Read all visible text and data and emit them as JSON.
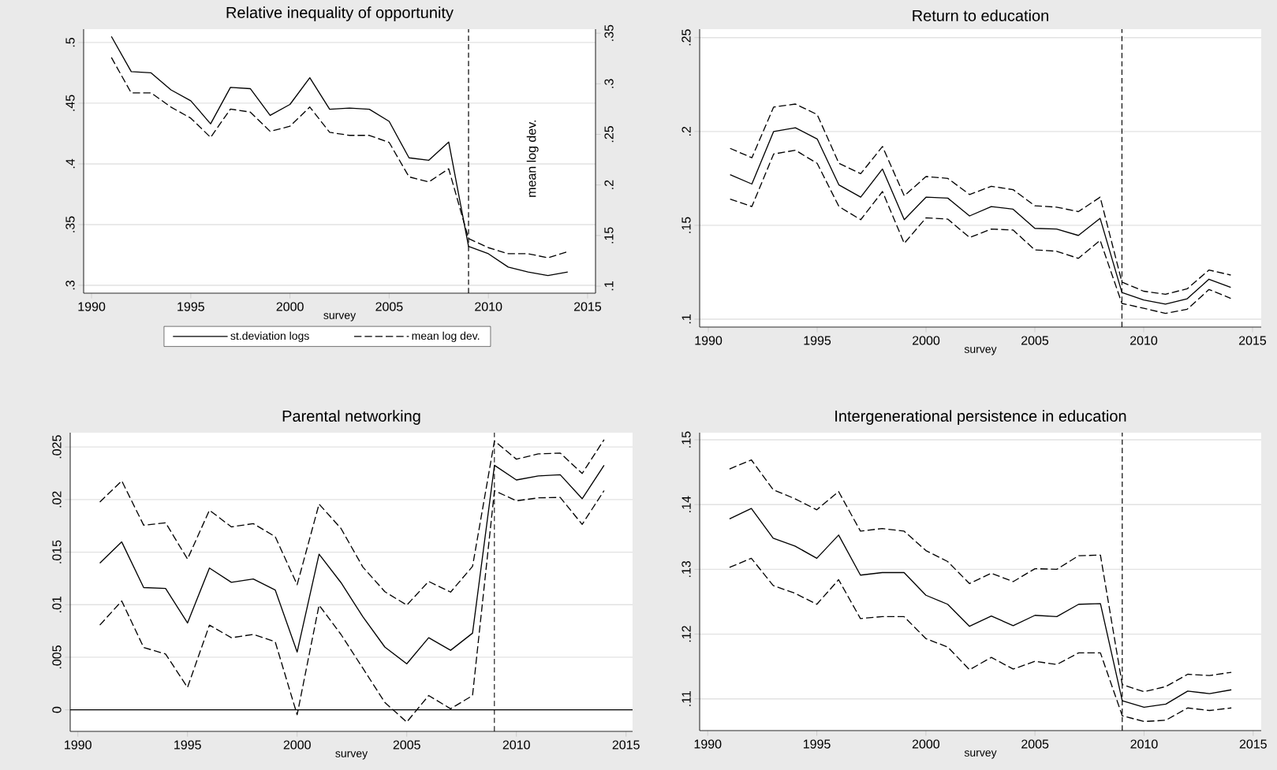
{
  "chart_data": [
    {
      "type": "line",
      "title": "Relative inequality of opportunity",
      "xlabel": "survey",
      "y2label": "mean log dev.",
      "x": [
        1991,
        1992,
        1993,
        1994,
        1995,
        1996,
        1997,
        1998,
        1999,
        2000,
        2001,
        2002,
        2003,
        2004,
        2005,
        2006,
        2007,
        2008,
        2009,
        2010,
        2011,
        2012,
        2013,
        2014
      ],
      "series": [
        {
          "name": "st.deviation logs",
          "color": "#000000",
          "line_style": "solid",
          "values": [
            0.505,
            0.476,
            0.475,
            0.461,
            0.452,
            0.433,
            0.463,
            0.462,
            0.44,
            0.449,
            0.471,
            0.445,
            0.446,
            0.445,
            0.435,
            0.405,
            0.403,
            0.418,
            0.332,
            0.326,
            0.315,
            0.311,
            0.308,
            0.311
          ]
        },
        {
          "name": "mean log dev.",
          "color": "#000000",
          "line_style": "dashed",
          "axis": "y2",
          "values": [
            0.326,
            0.291,
            0.291,
            0.277,
            0.266,
            0.247,
            0.275,
            0.272,
            0.253,
            0.258,
            0.277,
            0.252,
            0.249,
            0.249,
            0.242,
            0.208,
            0.203,
            0.216,
            0.147,
            0.138,
            0.132,
            0.132,
            0.128,
            0.134
          ]
        }
      ],
      "xlim": [
        1989.6,
        2015.4
      ],
      "xticks": [
        1990,
        1995,
        2000,
        2005,
        2010,
        2015
      ],
      "ylim": [
        0.2935,
        0.511
      ],
      "yticks": [
        {
          "value": 0.3,
          "label": ".3"
        },
        {
          "value": 0.35,
          "label": ".35"
        },
        {
          "value": 0.4,
          "label": ".4"
        },
        {
          "value": 0.45,
          "label": ".45"
        },
        {
          "value": 0.5,
          "label": ".5"
        }
      ],
      "y2lim": [
        0.093,
        0.354
      ],
      "y2ticks": [
        {
          "value": 0.1,
          "label": ".1"
        },
        {
          "value": 0.15,
          "label": ".15"
        },
        {
          "value": 0.2,
          "label": ".2"
        },
        {
          "value": 0.25,
          "label": ".25"
        },
        {
          "value": 0.3,
          "label": ".3"
        },
        {
          "value": 0.35,
          "label": ".35"
        }
      ],
      "grid": "y",
      "legend": "bottom",
      "ref_lines": [
        {
          "axis": "x",
          "value": 2009,
          "line_style": "dashed"
        }
      ]
    },
    {
      "type": "line",
      "title": "Return to education",
      "xlabel": "survey",
      "x": [
        1991,
        1992,
        1993,
        1994,
        1995,
        1996,
        1997,
        1998,
        1999,
        2000,
        2001,
        2002,
        2003,
        2004,
        2005,
        2006,
        2007,
        2008,
        2009,
        2010,
        2011,
        2012,
        2013,
        2014
      ],
      "series": [
        {
          "color": "#000000",
          "line_style": "solid",
          "values": [
            0.177,
            0.172,
            0.2,
            0.202,
            0.196,
            0.1715,
            0.165,
            0.18,
            0.153,
            0.165,
            0.1645,
            0.155,
            0.16,
            0.1586,
            0.1484,
            0.148,
            0.1446,
            0.1537,
            0.1142,
            0.1102,
            0.108,
            0.1109,
            0.1213,
            0.1169
          ]
        },
        {
          "color": "#000000",
          "line_style": "dashed",
          "values": [
            0.191,
            0.186,
            0.213,
            0.2146,
            0.209,
            0.183,
            0.1775,
            0.192,
            0.1657,
            0.176,
            0.175,
            0.1664,
            0.1708,
            0.169,
            0.1604,
            0.1597,
            0.1573,
            0.165,
            0.1198,
            0.1149,
            0.1133,
            0.1162,
            0.1262,
            0.1235
          ]
        },
        {
          "color": "#000000",
          "line_style": "dashed",
          "values": [
            0.164,
            0.16,
            0.188,
            0.19,
            0.183,
            0.16,
            0.153,
            0.168,
            0.1404,
            0.154,
            0.1533,
            0.1435,
            0.148,
            0.1475,
            0.1369,
            0.1362,
            0.1324,
            0.142,
            0.1084,
            0.1058,
            0.1031,
            0.1053,
            0.1158,
            0.1111
          ]
        }
      ],
      "xlim": [
        1989.6,
        2015.4
      ],
      "xticks": [
        1990,
        1995,
        2000,
        2005,
        2010,
        2015
      ],
      "ylim": [
        0.0958,
        0.2545
      ],
      "yticks": [
        {
          "value": 0.1,
          "label": ".1"
        },
        {
          "value": 0.15,
          "label": ".15"
        },
        {
          "value": 0.2,
          "label": ".2"
        },
        {
          "value": 0.25,
          "label": ".25"
        }
      ],
      "grid": "y",
      "ref_lines": [
        {
          "axis": "x",
          "value": 2009,
          "line_style": "dashed"
        }
      ]
    },
    {
      "type": "line",
      "title": "Parental networking",
      "xlabel": "survey",
      "x": [
        1991,
        1992,
        1993,
        1994,
        1995,
        1996,
        1997,
        1998,
        1999,
        2000,
        2001,
        2002,
        2003,
        2004,
        2005,
        2006,
        2007,
        2008,
        2009,
        2010,
        2011,
        2012,
        2013,
        2014
      ],
      "series": [
        {
          "color": "#000000",
          "line_style": "solid",
          "values": [
            0.01395,
            0.01597,
            0.01163,
            0.01155,
            0.00826,
            0.01349,
            0.01213,
            0.01244,
            0.0114,
            0.0055,
            0.0148,
            0.0121,
            0.00884,
            0.00597,
            0.00438,
            0.00686,
            0.00566,
            0.00729,
            0.02326,
            0.02186,
            0.02225,
            0.02236,
            0.02008,
            0.02326
          ]
        },
        {
          "color": "#000000",
          "line_style": "dashed",
          "values": [
            0.01977,
            0.02178,
            0.01756,
            0.01779,
            0.01434,
            0.01899,
            0.0174,
            0.01771,
            0.01647,
            0.0119,
            0.01957,
            0.01725,
            0.01357,
            0.01124,
            0.00996,
            0.01221,
            0.0112,
            0.01364,
            0.02558,
            0.02384,
            0.02434,
            0.02442,
            0.02248,
            0.0257
          ]
        },
        {
          "color": "#000000",
          "line_style": "dashed",
          "values": [
            0.00806,
            0.01035,
            0.00593,
            0.00531,
            0.00213,
            0.00806,
            0.00686,
            0.00717,
            0.00647,
            -0.00047,
            0.00996,
            0.00717,
            0.00395,
            0.0007,
            -0.00116,
            0.00136,
            0.0001,
            0.00136,
            0.02085,
            0.01988,
            0.02016,
            0.0202,
            0.01764,
            0.02085
          ]
        }
      ],
      "xlim": [
        1989.65,
        2015.3
      ],
      "xticks": [
        1990,
        1995,
        2000,
        2005,
        2010,
        2015
      ],
      "ylim": [
        -0.00205,
        0.02636
      ],
      "yticks": [
        0,
        {
          "value": 0.005,
          "label": ".005"
        },
        {
          "value": 0.01,
          "label": ".01"
        },
        {
          "value": 0.015,
          "label": ".015"
        },
        {
          "value": 0.02,
          "label": ".02"
        },
        {
          "value": 0.025,
          "label": ".025"
        }
      ],
      "grid": "y",
      "ref_lines": [
        {
          "axis": "x",
          "value": 2009,
          "line_style": "dashed"
        },
        {
          "axis": "y",
          "value": 0,
          "line_style": "solid"
        }
      ]
    },
    {
      "type": "line",
      "title": "Intergenerational persistence in education",
      "xlabel": "survey",
      "x": [
        1991,
        1992,
        1993,
        1994,
        1995,
        1996,
        1997,
        1998,
        1999,
        2000,
        2001,
        2002,
        2003,
        2004,
        2005,
        2006,
        2007,
        2008,
        2009,
        2010,
        2011,
        2012,
        2013,
        2014
      ],
      "series": [
        {
          "color": "#000000",
          "line_style": "solid",
          "values": [
            0.1378,
            0.1394,
            0.1348,
            0.1336,
            0.1317,
            0.1353,
            0.1291,
            0.1295,
            0.1295,
            0.126,
            0.1246,
            0.1212,
            0.1228,
            0.1213,
            0.1229,
            0.1227,
            0.1246,
            0.1247,
            0.1097,
            0.1087,
            0.1092,
            0.1112,
            0.1108,
            0.1114
          ]
        },
        {
          "color": "#000000",
          "line_style": "dashed",
          "values": [
            0.1455,
            0.1469,
            0.1423,
            0.1409,
            0.1392,
            0.142,
            0.1359,
            0.1363,
            0.1359,
            0.1329,
            0.1312,
            0.1278,
            0.1294,
            0.1281,
            0.1301,
            0.13,
            0.1321,
            0.1322,
            0.1122,
            0.1111,
            0.1119,
            0.1138,
            0.1136,
            0.1141
          ]
        },
        {
          "color": "#000000",
          "line_style": "dashed",
          "values": [
            0.1303,
            0.1317,
            0.1275,
            0.1263,
            0.1246,
            0.1284,
            0.1224,
            0.1227,
            0.1227,
            0.1193,
            0.118,
            0.1145,
            0.1164,
            0.1146,
            0.1158,
            0.1153,
            0.1171,
            0.1171,
            0.1074,
            0.1065,
            0.1067,
            0.1086,
            0.1082,
            0.1086
          ]
        }
      ],
      "xlim": [
        1989.63,
        2015.37
      ],
      "xticks": [
        1990,
        1995,
        2000,
        2005,
        2010,
        2015
      ],
      "ylim": [
        0.1051,
        0.1511
      ],
      "yticks": [
        {
          "value": 0.11,
          "label": ".11"
        },
        {
          "value": 0.12,
          "label": ".12"
        },
        {
          "value": 0.13,
          "label": ".13"
        },
        {
          "value": 0.14,
          "label": ".14"
        },
        {
          "value": 0.15,
          "label": ".15"
        }
      ],
      "grid": "y",
      "ref_lines": [
        {
          "axis": "x",
          "value": 2009,
          "line_style": "dashed"
        }
      ]
    }
  ]
}
